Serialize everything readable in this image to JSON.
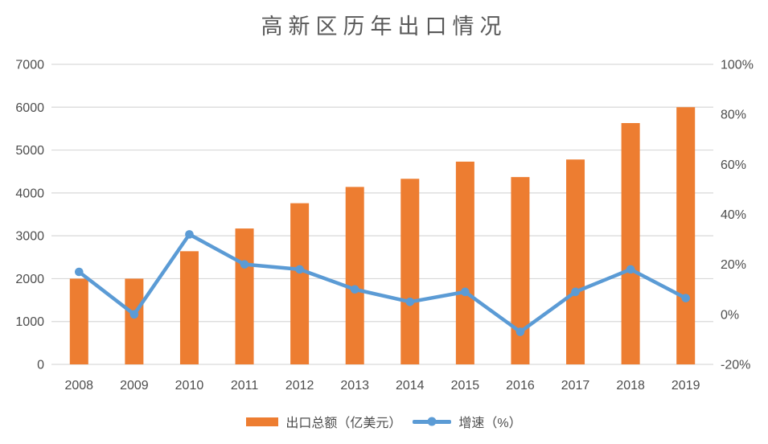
{
  "chart_data": {
    "type": "combo-bar-line",
    "title": "高新区历年出口情况",
    "categories": [
      "2008",
      "2009",
      "2010",
      "2011",
      "2012",
      "2013",
      "2014",
      "2015",
      "2016",
      "2017",
      "2018",
      "2019"
    ],
    "series": [
      {
        "name": "出口总额（亿美元）",
        "type": "bar",
        "axis": "left",
        "color": "#ED7D31",
        "values": [
          2000,
          2000,
          2640,
          3170,
          3760,
          4140,
          4330,
          4730,
          4370,
          4780,
          5630,
          6000
        ]
      },
      {
        "name": "增速（%）",
        "type": "line",
        "axis": "right",
        "color": "#5B9BD5",
        "values": [
          17,
          0,
          32,
          20,
          18,
          10,
          5,
          9,
          -7,
          9,
          18,
          6.5
        ]
      }
    ],
    "left_axis": {
      "min": 0,
      "max": 7000,
      "step": 1000,
      "tick_labels": [
        "0",
        "1000",
        "2000",
        "3000",
        "4000",
        "5000",
        "6000",
        "7000"
      ]
    },
    "right_axis": {
      "min": -20,
      "max": 100,
      "step": 20,
      "tick_labels": [
        "-20%",
        "0%",
        "20%",
        "40%",
        "60%",
        "80%",
        "100%"
      ]
    },
    "grid": true,
    "legend_position": "bottom",
    "colors": {
      "grid": "#D9D9D9",
      "axis_text": "#4D4D4D",
      "title_text": "#595959",
      "background": "#FFFFFF"
    }
  }
}
